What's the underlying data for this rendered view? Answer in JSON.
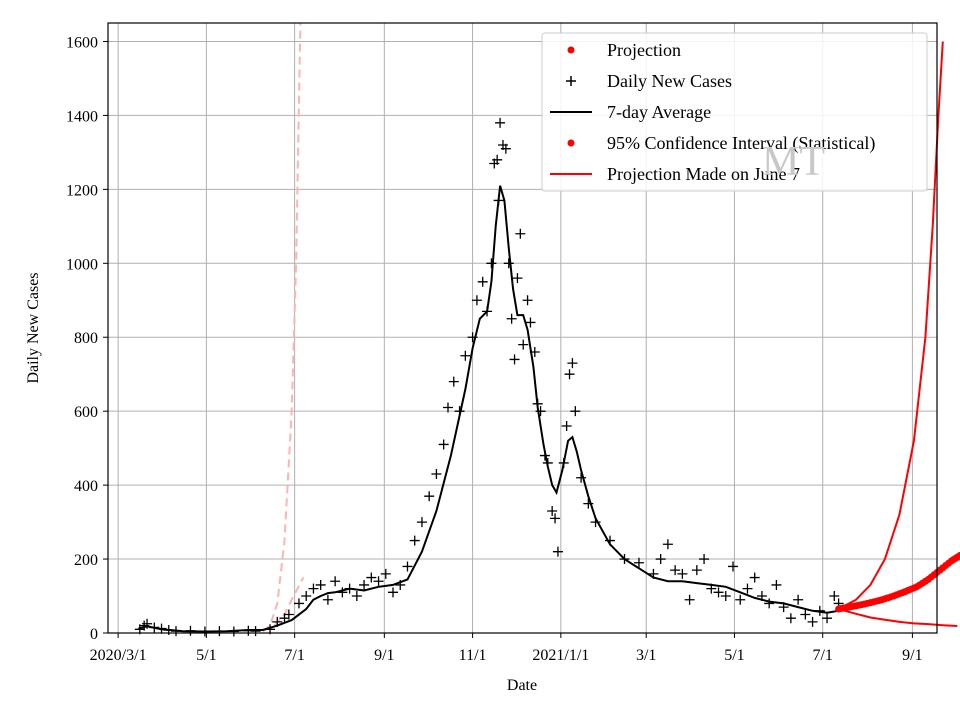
{
  "chart_data": {
    "type": "line",
    "xlabel": "Date",
    "ylabel": "Daily New Cases",
    "ylim": [
      0,
      1650
    ],
    "yticks": [
      0,
      200,
      400,
      600,
      800,
      1000,
      1200,
      1400,
      1600
    ],
    "ytick_labels": [
      "0",
      "200",
      "400",
      "600",
      "800",
      "1000",
      "1200",
      "1400",
      "1600"
    ],
    "xlim_days_from_2020_03_01": [
      -7,
      566
    ],
    "xticks": [
      {
        "day": 0,
        "label": "2020/3/1"
      },
      {
        "day": 61,
        "label": "5/1"
      },
      {
        "day": 122,
        "label": "7/1"
      },
      {
        "day": 184,
        "label": "9/1"
      },
      {
        "day": 245,
        "label": "11/1"
      },
      {
        "day": 306,
        "label": "2021/1/1"
      },
      {
        "day": 365,
        "label": "3/1"
      },
      {
        "day": 426,
        "label": "5/1"
      },
      {
        "day": 487,
        "label": "7/1"
      },
      {
        "day": 549,
        "label": "9/1"
      }
    ],
    "grid": true,
    "legend_position": "top-right",
    "watermark": "MT",
    "colors": {
      "projection": "#ff0000",
      "cases": "#000000",
      "average": "#000000",
      "ci": "#ff0000",
      "june7": "#ff0000",
      "early_projection": "#ffb3b3",
      "grid": "#b0b0b0"
    },
    "legend": [
      {
        "label": "Projection",
        "marker": "dot",
        "color": "#ff0000"
      },
      {
        "label": "Daily New Cases",
        "marker": "plus",
        "color": "#000000"
      },
      {
        "label": "7-day Average",
        "marker": "line",
        "color": "#000000"
      },
      {
        "label": "95% Confidence Interval (Statistical)",
        "marker": "dot",
        "color": "#ff0000"
      },
      {
        "label": "Projection Made on June 7",
        "marker": "line",
        "color": "#ff0000"
      }
    ],
    "series": [
      {
        "name": "7-day Average",
        "style": "line",
        "points": [
          [
            14,
            12
          ],
          [
            20,
            18
          ],
          [
            30,
            10
          ],
          [
            45,
            5
          ],
          [
            60,
            4
          ],
          [
            75,
            5
          ],
          [
            90,
            8
          ],
          [
            100,
            8
          ],
          [
            110,
            20
          ],
          [
            120,
            35
          ],
          [
            130,
            65
          ],
          [
            135,
            90
          ],
          [
            140,
            100
          ],
          [
            145,
            108
          ],
          [
            150,
            110
          ],
          [
            160,
            120
          ],
          [
            170,
            115
          ],
          [
            180,
            125
          ],
          [
            190,
            130
          ],
          [
            200,
            145
          ],
          [
            210,
            220
          ],
          [
            220,
            330
          ],
          [
            230,
            480
          ],
          [
            240,
            660
          ],
          [
            245,
            770
          ],
          [
            250,
            850
          ],
          [
            255,
            870
          ],
          [
            258,
            950
          ],
          [
            261,
            1100
          ],
          [
            264,
            1210
          ],
          [
            267,
            1170
          ],
          [
            270,
            1040
          ],
          [
            273,
            930
          ],
          [
            276,
            860
          ],
          [
            280,
            860
          ],
          [
            283,
            820
          ],
          [
            287,
            720
          ],
          [
            290,
            610
          ],
          [
            294,
            510
          ],
          [
            297,
            450
          ],
          [
            300,
            400
          ],
          [
            303,
            380
          ],
          [
            307,
            440
          ],
          [
            311,
            520
          ],
          [
            314,
            530
          ],
          [
            317,
            490
          ],
          [
            320,
            440
          ],
          [
            325,
            370
          ],
          [
            330,
            310
          ],
          [
            340,
            240
          ],
          [
            350,
            200
          ],
          [
            360,
            175
          ],
          [
            370,
            150
          ],
          [
            380,
            140
          ],
          [
            390,
            140
          ],
          [
            400,
            135
          ],
          [
            410,
            130
          ],
          [
            420,
            125
          ],
          [
            430,
            110
          ],
          [
            440,
            95
          ],
          [
            450,
            85
          ],
          [
            460,
            80
          ],
          [
            470,
            70
          ],
          [
            480,
            60
          ],
          [
            490,
            55
          ],
          [
            498,
            60
          ]
        ]
      },
      {
        "name": "Projection",
        "style": "dots",
        "points": [
          [
            498,
            65
          ],
          [
            505,
            70
          ],
          [
            512,
            75
          ],
          [
            520,
            82
          ],
          [
            528,
            90
          ],
          [
            536,
            100
          ],
          [
            544,
            112
          ],
          [
            552,
            125
          ],
          [
            560,
            145
          ],
          [
            568,
            170
          ],
          [
            576,
            195
          ],
          [
            582,
            210
          ]
        ]
      },
      {
        "name": "95% Confidence Interval (Statistical)",
        "style": "line",
        "points": [
          [
            498,
            65
          ],
          [
            510,
            90
          ],
          [
            520,
            130
          ],
          [
            530,
            200
          ],
          [
            540,
            320
          ],
          [
            550,
            520
          ],
          [
            558,
            800
          ],
          [
            563,
            1100
          ],
          [
            567,
            1400
          ],
          [
            570,
            1600
          ]
        ]
      },
      {
        "name": "95% Confidence Interval (Statistical) lower",
        "style": "line",
        "points": [
          [
            498,
            65
          ],
          [
            510,
            52
          ],
          [
            520,
            42
          ],
          [
            530,
            36
          ],
          [
            540,
            30
          ],
          [
            550,
            26
          ],
          [
            560,
            24
          ],
          [
            570,
            21
          ],
          [
            580,
            19
          ]
        ]
      },
      {
        "name": "Projection Made on June 7 (early)",
        "style": "dashed",
        "points": [
          [
            100,
            5
          ],
          [
            105,
            20
          ],
          [
            110,
            80
          ],
          [
            115,
            250
          ],
          [
            120,
            600
          ],
          [
            123,
            1000
          ],
          [
            126,
            1650
          ]
        ]
      },
      {
        "name": "Projection Made on June 7 (early lower)",
        "style": "dashed",
        "points": [
          [
            100,
            5
          ],
          [
            108,
            20
          ],
          [
            115,
            50
          ],
          [
            120,
            90
          ],
          [
            128,
            150
          ]
        ]
      }
    ],
    "scatter_seed_points": [
      [
        15,
        10
      ],
      [
        18,
        20
      ],
      [
        20,
        25
      ],
      [
        25,
        15
      ],
      [
        30,
        12
      ],
      [
        35,
        8
      ],
      [
        40,
        5
      ],
      [
        50,
        6
      ],
      [
        60,
        4
      ],
      [
        70,
        5
      ],
      [
        80,
        4
      ],
      [
        90,
        6
      ],
      [
        95,
        5
      ],
      [
        105,
        10
      ],
      [
        110,
        30
      ],
      [
        115,
        40
      ],
      [
        118,
        50
      ],
      [
        125,
        80
      ],
      [
        130,
        100
      ],
      [
        135,
        120
      ],
      [
        140,
        130
      ],
      [
        145,
        90
      ],
      [
        150,
        140
      ],
      [
        155,
        110
      ],
      [
        160,
        120
      ],
      [
        165,
        100
      ],
      [
        170,
        130
      ],
      [
        175,
        150
      ],
      [
        180,
        140
      ],
      [
        185,
        160
      ],
      [
        190,
        110
      ],
      [
        195,
        130
      ],
      [
        200,
        180
      ],
      [
        205,
        250
      ],
      [
        210,
        300
      ],
      [
        215,
        370
      ],
      [
        220,
        430
      ],
      [
        225,
        510
      ],
      [
        228,
        610
      ],
      [
        232,
        680
      ],
      [
        236,
        600
      ],
      [
        240,
        750
      ],
      [
        245,
        800
      ],
      [
        248,
        900
      ],
      [
        252,
        950
      ],
      [
        255,
        870
      ],
      [
        258,
        1000
      ],
      [
        260,
        1270
      ],
      [
        262,
        1280
      ],
      [
        263,
        1170
      ],
      [
        264,
        1380
      ],
      [
        266,
        1320
      ],
      [
        268,
        1310
      ],
      [
        270,
        1000
      ],
      [
        272,
        850
      ],
      [
        274,
        740
      ],
      [
        276,
        960
      ],
      [
        278,
        1080
      ],
      [
        280,
        780
      ],
      [
        283,
        900
      ],
      [
        285,
        840
      ],
      [
        288,
        760
      ],
      [
        290,
        620
      ],
      [
        292,
        600
      ],
      [
        295,
        480
      ],
      [
        297,
        460
      ],
      [
        300,
        330
      ],
      [
        302,
        310
      ],
      [
        304,
        220
      ],
      [
        308,
        460
      ],
      [
        310,
        560
      ],
      [
        312,
        700
      ],
      [
        314,
        730
      ],
      [
        316,
        600
      ],
      [
        320,
        420
      ],
      [
        325,
        350
      ],
      [
        330,
        300
      ],
      [
        340,
        250
      ],
      [
        350,
        200
      ],
      [
        360,
        190
      ],
      [
        370,
        160
      ],
      [
        375,
        200
      ],
      [
        380,
        240
      ],
      [
        385,
        170
      ],
      [
        390,
        160
      ],
      [
        395,
        90
      ],
      [
        400,
        170
      ],
      [
        405,
        200
      ],
      [
        410,
        120
      ],
      [
        415,
        110
      ],
      [
        420,
        100
      ],
      [
        425,
        180
      ],
      [
        430,
        90
      ],
      [
        435,
        120
      ],
      [
        440,
        150
      ],
      [
        445,
        100
      ],
      [
        450,
        80
      ],
      [
        455,
        130
      ],
      [
        460,
        70
      ],
      [
        465,
        40
      ],
      [
        470,
        90
      ],
      [
        475,
        50
      ],
      [
        480,
        30
      ],
      [
        485,
        60
      ],
      [
        490,
        40
      ],
      [
        495,
        100
      ],
      [
        498,
        80
      ]
    ]
  }
}
